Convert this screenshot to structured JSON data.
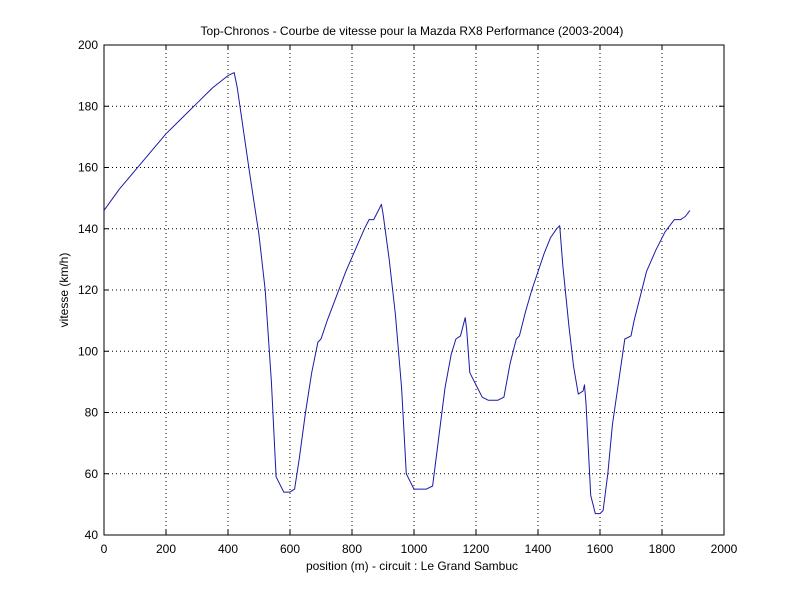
{
  "chart_data": {
    "type": "line",
    "title": "Top-Chronos - Courbe de vitesse pour la Mazda RX8 Performance (2003-2004)",
    "xlabel": "position (m) - circuit : Le Grand Sambuc",
    "ylabel": "vitesse (km/h)",
    "xlim": [
      0,
      2000
    ],
    "ylim": [
      40,
      200
    ],
    "xticks": [
      0,
      200,
      400,
      600,
      800,
      1000,
      1200,
      1400,
      1600,
      1800,
      2000
    ],
    "yticks": [
      40,
      60,
      80,
      100,
      120,
      140,
      160,
      180,
      200
    ],
    "grid": true,
    "line_color": "#1a1aa6",
    "series": [
      {
        "x": [
          0,
          50,
          100,
          150,
          200,
          250,
          300,
          350,
          400,
          420,
          430,
          450,
          470,
          500,
          520,
          540,
          555,
          580,
          600,
          615,
          630,
          650,
          670,
          690,
          700,
          720,
          750,
          780,
          810,
          840,
          855,
          870,
          885,
          895,
          900,
          920,
          940,
          960,
          975,
          1000,
          1020,
          1040,
          1060,
          1080,
          1100,
          1120,
          1135,
          1150,
          1165,
          1170,
          1180,
          1200,
          1220,
          1240,
          1270,
          1290,
          1310,
          1330,
          1340,
          1360,
          1380,
          1400,
          1420,
          1440,
          1460,
          1470,
          1480,
          1500,
          1515,
          1530,
          1545,
          1550,
          1555,
          1570,
          1585,
          1600,
          1610,
          1625,
          1640,
          1660,
          1680,
          1700,
          1710,
          1730,
          1750,
          1780,
          1810,
          1840,
          1860,
          1875,
          1890
        ],
        "y": [
          146,
          153,
          159,
          165,
          171,
          176,
          181,
          186,
          190,
          191,
          186,
          172,
          158,
          138,
          120,
          90,
          59,
          54,
          54,
          55,
          65,
          80,
          93,
          103,
          104,
          110,
          118,
          126,
          133,
          140,
          143,
          143,
          146,
          148,
          145,
          130,
          112,
          88,
          60,
          55,
          55,
          55,
          56,
          72,
          88,
          99,
          104,
          105,
          111,
          107,
          93,
          89,
          85,
          84,
          84,
          85,
          96,
          104,
          105,
          113,
          120,
          126,
          132,
          137,
          140,
          141,
          128,
          108,
          95,
          86,
          87,
          89,
          83,
          53,
          47,
          47,
          48,
          60,
          76,
          90,
          104,
          105,
          110,
          118,
          126,
          133,
          139,
          143,
          143,
          144,
          146
        ]
      }
    ]
  }
}
